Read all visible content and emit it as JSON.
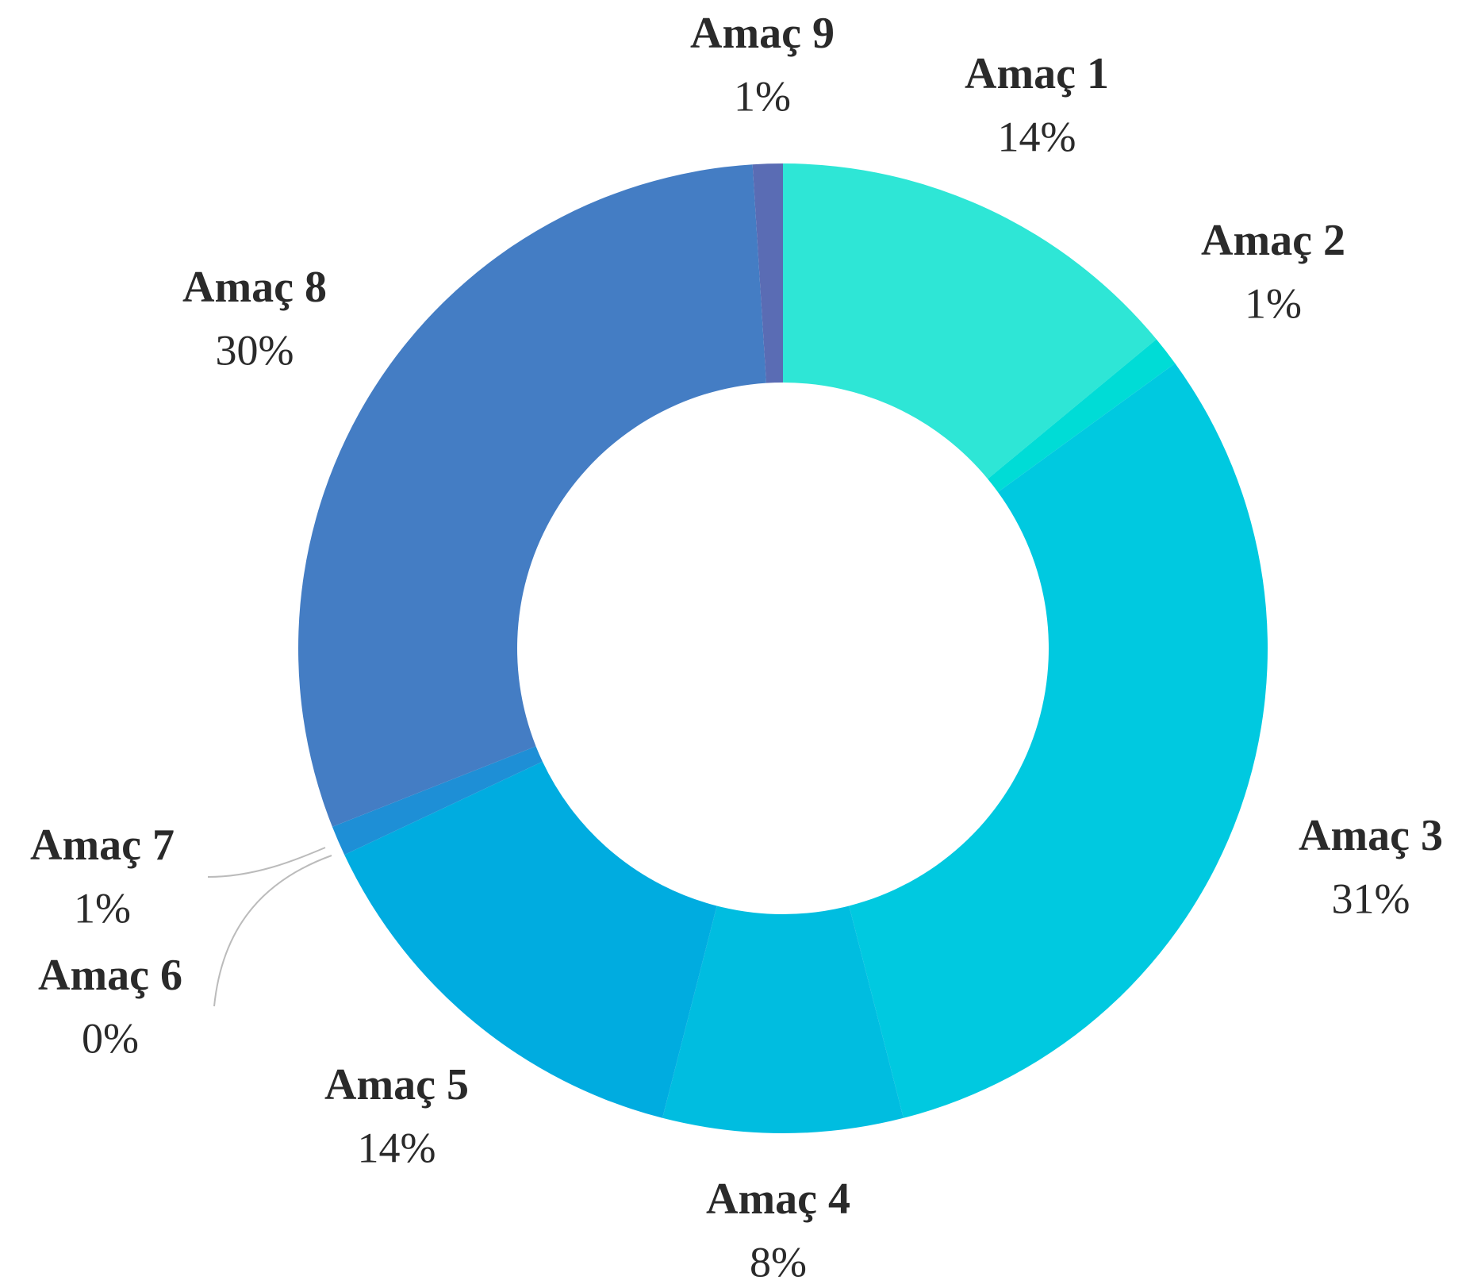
{
  "chart_data": {
    "type": "donut",
    "categories": [
      "Amaç 1",
      "Amaç 2",
      "Amaç 3",
      "Amaç 4",
      "Amaç 5",
      "Amaç 6",
      "Amaç 7",
      "Amaç 8",
      "Amaç 9"
    ],
    "values": [
      14,
      1,
      31,
      8,
      14,
      0,
      1,
      30,
      1
    ],
    "value_labels": [
      "14%",
      "1%",
      "31%",
      "8%",
      "14%",
      "0%",
      "1%",
      "30%",
      "1%"
    ],
    "colors": [
      "#2ee6d6",
      "#00dcd6",
      "#00c9e0",
      "#00bde0",
      "#00ace0",
      "#009fde",
      "#1e8fd6",
      "#447dc4",
      "#5a6cb4"
    ]
  }
}
